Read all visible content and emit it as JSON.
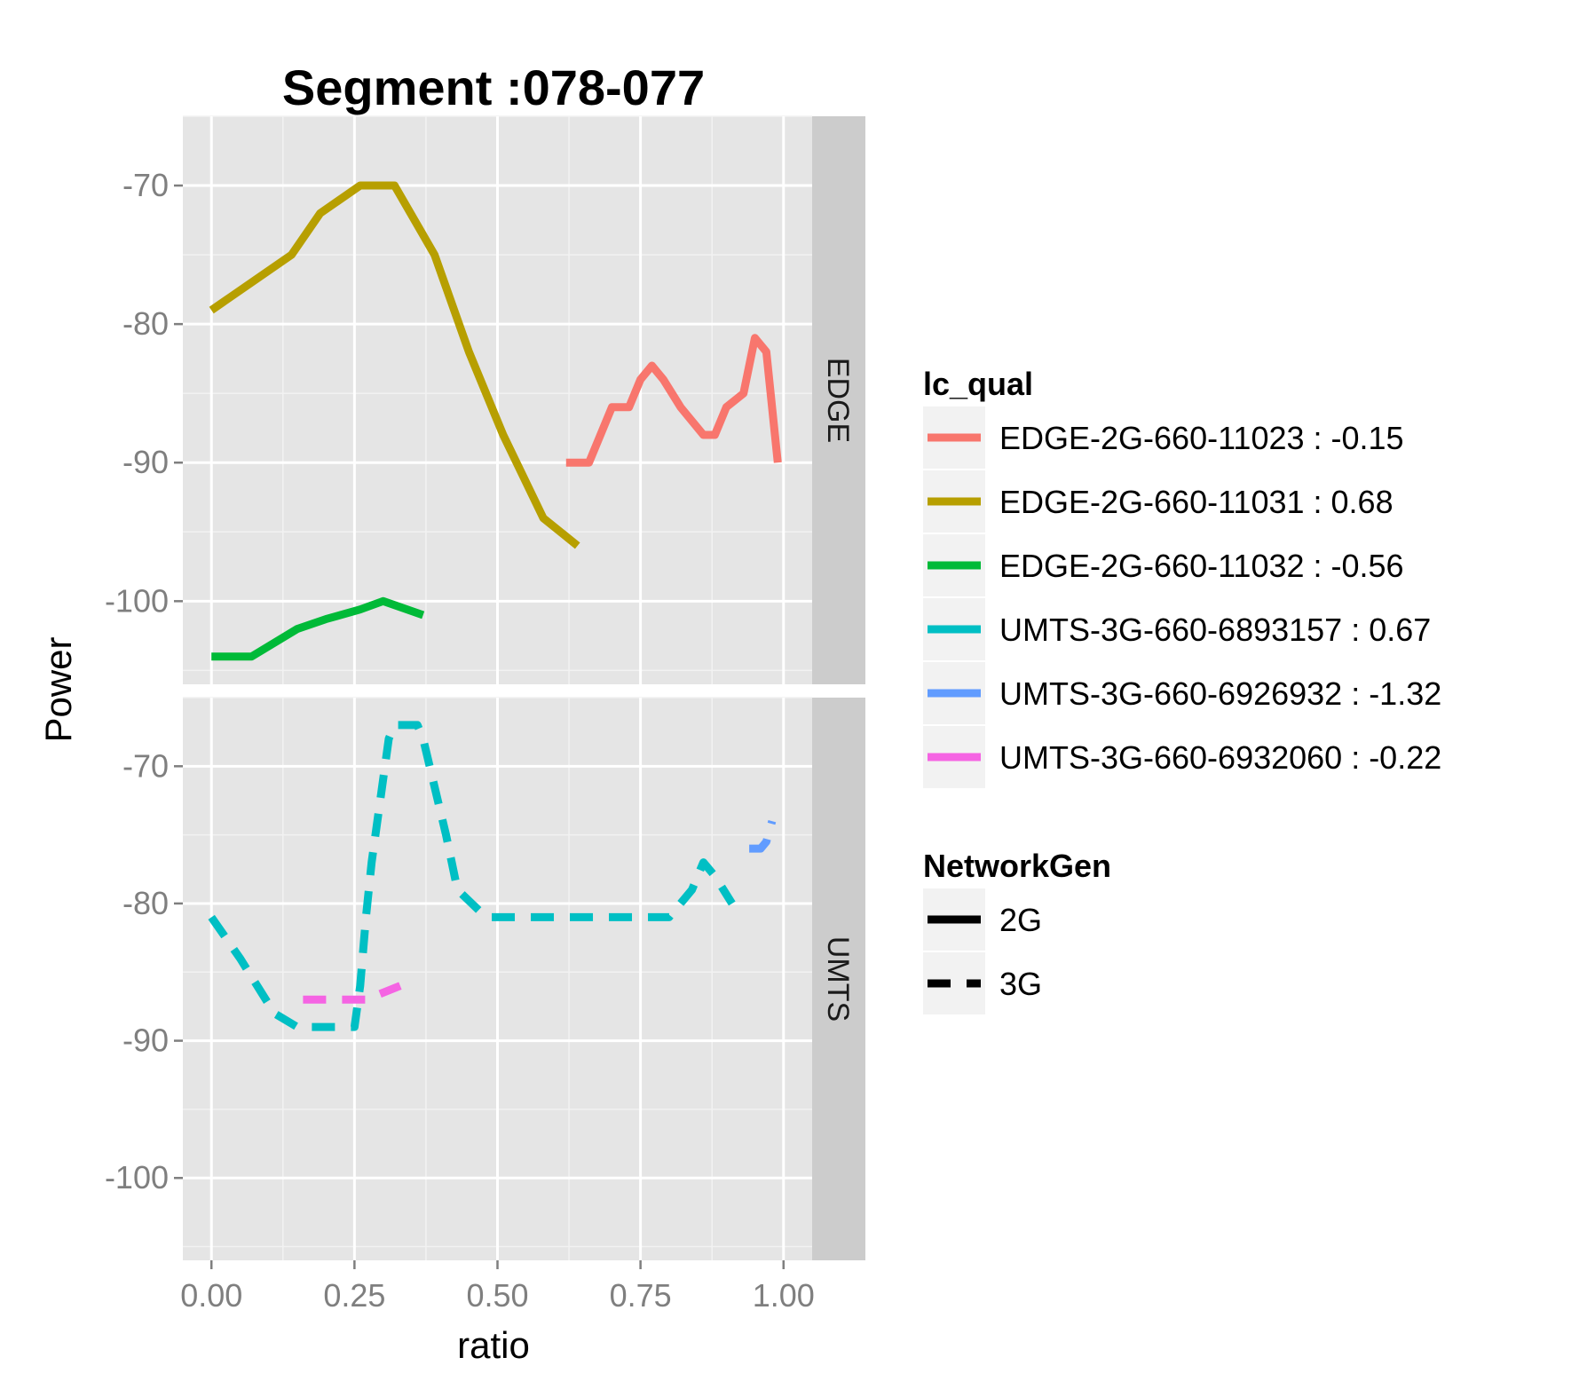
{
  "chart_data": {
    "type": "line",
    "title": "Segment :078-077",
    "xlabel": "ratio",
    "ylabel": "Power",
    "xlim": [
      -0.05,
      1.05
    ],
    "ylim": [
      -106,
      -65
    ],
    "x_ticks": [
      "0.00",
      "0.25",
      "0.50",
      "0.75",
      "1.00"
    ],
    "x_tick_values": [
      0,
      0.25,
      0.5,
      0.75,
      1.0
    ],
    "y_ticks": [
      "-70",
      "-80",
      "-90",
      "-100"
    ],
    "y_tick_values": [
      -70,
      -80,
      -90,
      -100
    ],
    "grid": true,
    "legend_position": "right",
    "facets": [
      {
        "label": "EDGE",
        "series": [
          {
            "name": "EDGE-2G-660-11023 : -0.15",
            "generation": "2G",
            "color": "#F8766D",
            "x": [
              0.62,
              0.66,
              0.7,
              0.71,
              0.73,
              0.75,
              0.77,
              0.79,
              0.82,
              0.86,
              0.88,
              0.9,
              0.93,
              0.95,
              0.97,
              0.99
            ],
            "y": [
              -90,
              -90,
              -86,
              -86,
              -86,
              -84,
              -83,
              -84,
              -86,
              -88,
              -88,
              -86,
              -85,
              -81,
              -82,
              -90
            ]
          },
          {
            "name": "EDGE-2G-660-11031 : 0.68",
            "generation": "2G",
            "color": "#B79F00",
            "x": [
              0.0,
              0.07,
              0.14,
              0.19,
              0.26,
              0.32,
              0.39,
              0.45,
              0.51,
              0.58,
              0.64
            ],
            "y": [
              -79,
              -77,
              -75,
              -72,
              -70,
              -70,
              -75,
              -82,
              -88,
              -94,
              -96
            ]
          },
          {
            "name": "EDGE-2G-660-11032 : -0.56",
            "generation": "2G",
            "color": "#00BA38",
            "x": [
              0.0,
              0.07,
              0.15,
              0.2,
              0.26,
              0.3,
              0.37
            ],
            "y": [
              -104,
              -104,
              -102,
              -101.3,
              -100.6,
              -100,
              -101
            ]
          }
        ]
      },
      {
        "label": "UMTS",
        "series": [
          {
            "name": "UMTS-3G-660-6893157 : 0.67",
            "generation": "3G",
            "color": "#00BFC4",
            "x": [
              0.0,
              0.05,
              0.11,
              0.15,
              0.23,
              0.25,
              0.26,
              0.27,
              0.28,
              0.31,
              0.32,
              0.36,
              0.37,
              0.41,
              0.43,
              0.48,
              0.57,
              0.65,
              0.72,
              0.8,
              0.84,
              0.86,
              0.88,
              0.91
            ],
            "y": [
              -81,
              -84,
              -88,
              -89,
              -89,
              -89,
              -86,
              -81,
              -77,
              -68,
              -67,
              -67,
              -68,
              -75,
              -79,
              -81,
              -81,
              -81,
              -81,
              -81,
              -79,
              -77,
              -78,
              -80
            ]
          },
          {
            "name": "UMTS-3G-660-6926932 : -1.32",
            "generation": "3G",
            "color": "#619CFF",
            "x": [
              0.94,
              0.96,
              0.97,
              0.98
            ],
            "y": [
              -76,
              -76,
              -75.5,
              -74
            ]
          },
          {
            "name": "UMTS-3G-660-6932060 : -0.22",
            "generation": "3G",
            "color": "#F564E3",
            "x": [
              0.16,
              0.23,
              0.27,
              0.33
            ],
            "y": [
              -87,
              -87,
              -87,
              -86
            ]
          }
        ]
      }
    ],
    "legends": [
      {
        "title": "lc_qual",
        "entries": [
          {
            "label": "EDGE-2G-660-11023 : -0.15",
            "color": "#F8766D",
            "dash": "solid"
          },
          {
            "label": "EDGE-2G-660-11031 : 0.68",
            "color": "#B79F00",
            "dash": "solid"
          },
          {
            "label": "EDGE-2G-660-11032 : -0.56",
            "color": "#00BA38",
            "dash": "solid"
          },
          {
            "label": "UMTS-3G-660-6893157 : 0.67",
            "color": "#00BFC4",
            "dash": "solid"
          },
          {
            "label": "UMTS-3G-660-6926932 : -1.32",
            "color": "#619CFF",
            "dash": "solid"
          },
          {
            "label": "UMTS-3G-660-6932060 : -0.22",
            "color": "#F564E3",
            "dash": "solid"
          }
        ]
      },
      {
        "title": "NetworkGen",
        "entries": [
          {
            "label": "2G",
            "color": "#000000",
            "dash": "solid"
          },
          {
            "label": "3G",
            "color": "#000000",
            "dash": "dashed"
          }
        ]
      }
    ]
  },
  "colors": {
    "panel_background": "#E5E5E5",
    "strip_background": "#CCCCCC",
    "grid_major": "#FFFFFF",
    "grid_minor": "#F2F2F2",
    "legend_key_background": "#F2F2F2"
  }
}
